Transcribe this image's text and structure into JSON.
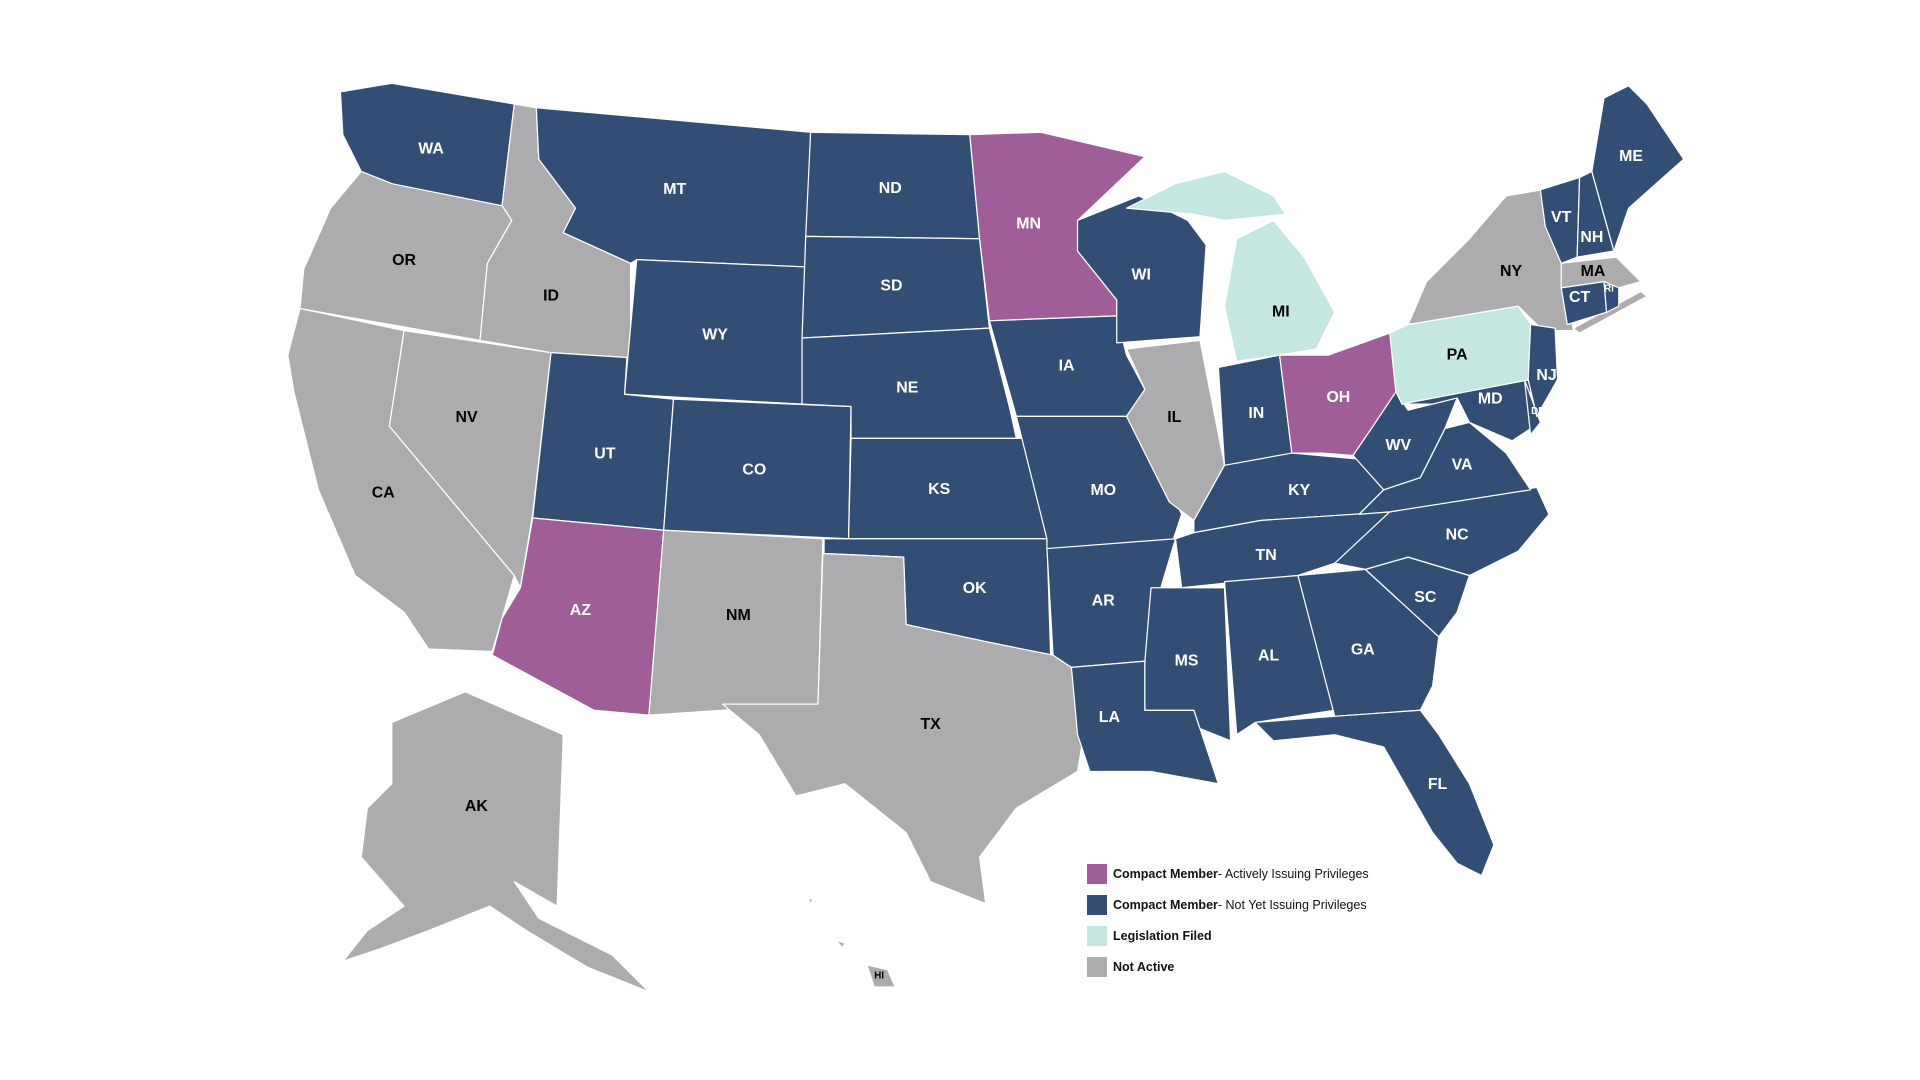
{
  "colors": {
    "active": "#a05e98",
    "member": "#334e74",
    "legislation": "#c4e8e1",
    "inactive": "#acacae"
  },
  "legend": [
    {
      "status": "active",
      "bold": "Compact Member",
      "rest": " - Actively Issuing Privileges"
    },
    {
      "status": "member",
      "bold": "Compact Member",
      "rest": " - Not Yet Issuing Privileges"
    },
    {
      "status": "legislation",
      "bold": "Legislation Filed",
      "rest": ""
    },
    {
      "status": "inactive",
      "bold": "Not Active",
      "rest": ""
    }
  ],
  "states": [
    {
      "code": "WA",
      "status": "member"
    },
    {
      "code": "OR",
      "status": "inactive"
    },
    {
      "code": "CA",
      "status": "inactive"
    },
    {
      "code": "NV",
      "status": "inactive"
    },
    {
      "code": "ID",
      "status": "inactive"
    },
    {
      "code": "MT",
      "status": "member"
    },
    {
      "code": "WY",
      "status": "member"
    },
    {
      "code": "UT",
      "status": "member"
    },
    {
      "code": "AZ",
      "status": "active"
    },
    {
      "code": "CO",
      "status": "member"
    },
    {
      "code": "NM",
      "status": "inactive"
    },
    {
      "code": "ND",
      "status": "member"
    },
    {
      "code": "SD",
      "status": "member"
    },
    {
      "code": "NE",
      "status": "member"
    },
    {
      "code": "KS",
      "status": "member"
    },
    {
      "code": "OK",
      "status": "member"
    },
    {
      "code": "TX",
      "status": "inactive"
    },
    {
      "code": "MN",
      "status": "active"
    },
    {
      "code": "IA",
      "status": "member"
    },
    {
      "code": "MO",
      "status": "member"
    },
    {
      "code": "AR",
      "status": "member"
    },
    {
      "code": "LA",
      "status": "member"
    },
    {
      "code": "WI",
      "status": "member"
    },
    {
      "code": "IL",
      "status": "inactive"
    },
    {
      "code": "MI",
      "status": "legislation"
    },
    {
      "code": "IN",
      "status": "member"
    },
    {
      "code": "OH",
      "status": "active"
    },
    {
      "code": "KY",
      "status": "member"
    },
    {
      "code": "TN",
      "status": "member"
    },
    {
      "code": "MS",
      "status": "member"
    },
    {
      "code": "AL",
      "status": "member"
    },
    {
      "code": "GA",
      "status": "member"
    },
    {
      "code": "FL",
      "status": "member"
    },
    {
      "code": "SC",
      "status": "member"
    },
    {
      "code": "NC",
      "status": "member"
    },
    {
      "code": "VA",
      "status": "member"
    },
    {
      "code": "WV",
      "status": "member"
    },
    {
      "code": "PA",
      "status": "legislation"
    },
    {
      "code": "NY",
      "status": "inactive"
    },
    {
      "code": "MD",
      "status": "member"
    },
    {
      "code": "DE",
      "status": "member"
    },
    {
      "code": "NJ",
      "status": "member"
    },
    {
      "code": "CT",
      "status": "member"
    },
    {
      "code": "RI",
      "status": "member"
    },
    {
      "code": "MA",
      "status": "inactive"
    },
    {
      "code": "VT",
      "status": "member"
    },
    {
      "code": "NH",
      "status": "member"
    },
    {
      "code": "ME",
      "status": "member"
    },
    {
      "code": "AK",
      "status": "inactive"
    },
    {
      "code": "HI",
      "status": "inactive"
    }
  ]
}
